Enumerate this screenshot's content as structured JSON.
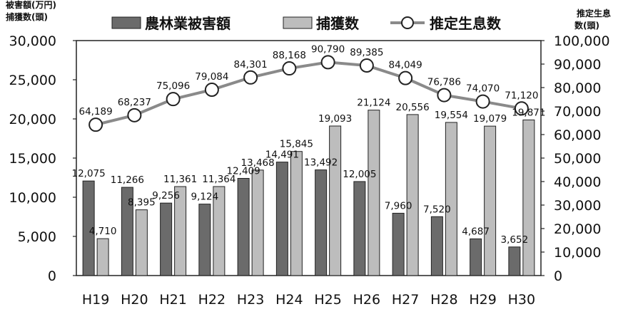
{
  "chart_data": {
    "type": "bar",
    "title": "",
    "categories": [
      "H19",
      "H20",
      "H21",
      "H22",
      "H23",
      "H24",
      "H25",
      "H26",
      "H27",
      "H28",
      "H29",
      "H30"
    ],
    "series": [
      {
        "name": "農林業被害額",
        "kind": "bar",
        "axis": "left",
        "color": "#6b6b6b",
        "values": [
          12075,
          11266,
          9256,
          9124,
          12409,
          14491,
          13492,
          12005,
          7960,
          7520,
          4687,
          3652
        ]
      },
      {
        "name": "捕獲数",
        "kind": "bar",
        "axis": "left",
        "color": "#bdbdbd",
        "values": [
          4710,
          8395,
          11361,
          11364,
          13468,
          15845,
          19093,
          21124,
          20556,
          19554,
          19079,
          19871
        ]
      },
      {
        "name": "推定生息数",
        "kind": "line",
        "axis": "right",
        "color": "#8a8a8a",
        "values": [
          64189,
          68237,
          75096,
          79084,
          84301,
          88168,
          90790,
          89385,
          84049,
          76786,
          74070,
          71120
        ]
      }
    ],
    "left_axis": {
      "label_line1": "被害額(万円)",
      "label_line2": "捕獲数(頭)",
      "range": [
        0,
        30000
      ],
      "ticks": [
        "0",
        "5,000",
        "10,000",
        "15,000",
        "20,000",
        "25,000",
        "30,000"
      ]
    },
    "right_axis": {
      "label_line1": "推定生息",
      "label_line2": "数(頭)",
      "range": [
        0,
        100000
      ],
      "ticks": [
        "0",
        "10,000",
        "20,000",
        "30,000",
        "40,000",
        "50,000",
        "60,000",
        "70,000",
        "80,000",
        "90,000",
        "100,000"
      ]
    },
    "grid": false,
    "legend": {
      "position": "top",
      "entries": [
        "農林業被害額",
        "捕獲数",
        "推定生息数"
      ]
    },
    "data_labels": {
      "damage": [
        "12,075",
        "11,266",
        "9,256",
        "9,124",
        "12,409",
        "14,491",
        "13,492",
        "12,005",
        "7,960",
        "7,520",
        "4,687",
        "3,652"
      ],
      "capture": [
        "4,710",
        "8,395",
        "11,361",
        "11,364",
        "13,468",
        "15,845",
        "19,093",
        "21,124",
        "20,556",
        "19,554",
        "19,079",
        "19,871"
      ],
      "population": [
        "64,189",
        "68,237",
        "75,096",
        "79,084",
        "84,301",
        "88,168",
        "90,790",
        "89,385",
        "84,049",
        "76,786",
        "74,070",
        "71,120"
      ]
    }
  }
}
